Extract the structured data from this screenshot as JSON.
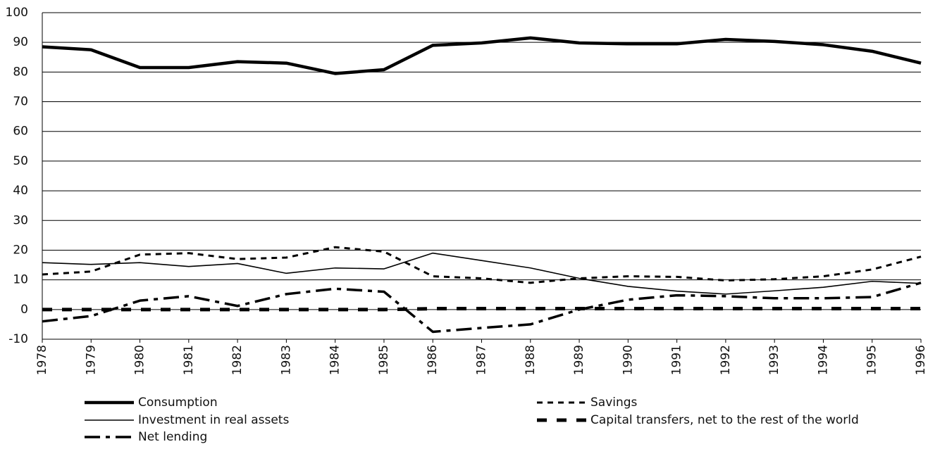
{
  "chart_data": {
    "type": "line",
    "categories": [
      "1978",
      "1979",
      "1980",
      "1981",
      "1982",
      "1983",
      "1984",
      "1985",
      "1986",
      "1987",
      "1988",
      "1989",
      "1990",
      "1991",
      "1992",
      "1993",
      "1994",
      "1995",
      "1996"
    ],
    "series": [
      {
        "name": "Consumption",
        "color": "#000000",
        "values": [
          88.5,
          87.5,
          81.5,
          81.5,
          83.5,
          83,
          79.5,
          80.8,
          89,
          89.8,
          91.5,
          89.8,
          89.5,
          89.5,
          91,
          90.3,
          89.2,
          87,
          83
        ]
      },
      {
        "name": "Investment in real assets",
        "color": "#000000",
        "values": [
          15.8,
          15.2,
          15.8,
          14.5,
          15.5,
          12.2,
          14,
          13.7,
          19,
          16.5,
          14,
          10.5,
          7.8,
          6.2,
          5.2,
          6.3,
          7.5,
          9.5,
          8.8
        ]
      },
      {
        "name": "Net lending",
        "color": "#000000",
        "values": [
          -4,
          -2.2,
          3,
          4.5,
          1.2,
          5.2,
          7,
          6,
          -7.5,
          -6.2,
          -5,
          0,
          3.3,
          4.8,
          4.5,
          3.8,
          3.8,
          4.2,
          9
        ]
      },
      {
        "name": "Savings",
        "color": "#000000",
        "values": [
          11.8,
          12.8,
          18.5,
          19,
          17,
          17.5,
          21,
          19.5,
          11.2,
          10.5,
          9,
          10.5,
          11.2,
          11,
          9.8,
          10.2,
          11.2,
          13.5,
          17.8
        ]
      },
      {
        "name": "Capital transfers, net to the rest of the world",
        "color": "#000000",
        "values": [
          0,
          0,
          0,
          0,
          0,
          0,
          0,
          0,
          0.3,
          0.3,
          0.3,
          0.3,
          0.3,
          0.3,
          0.3,
          0.3,
          0.3,
          0.3,
          0.3
        ]
      }
    ],
    "ylim": [
      -10,
      100
    ],
    "yticks": [
      -10,
      0,
      10,
      20,
      30,
      40,
      50,
      60,
      70,
      80,
      90,
      100
    ],
    "grid": true
  }
}
